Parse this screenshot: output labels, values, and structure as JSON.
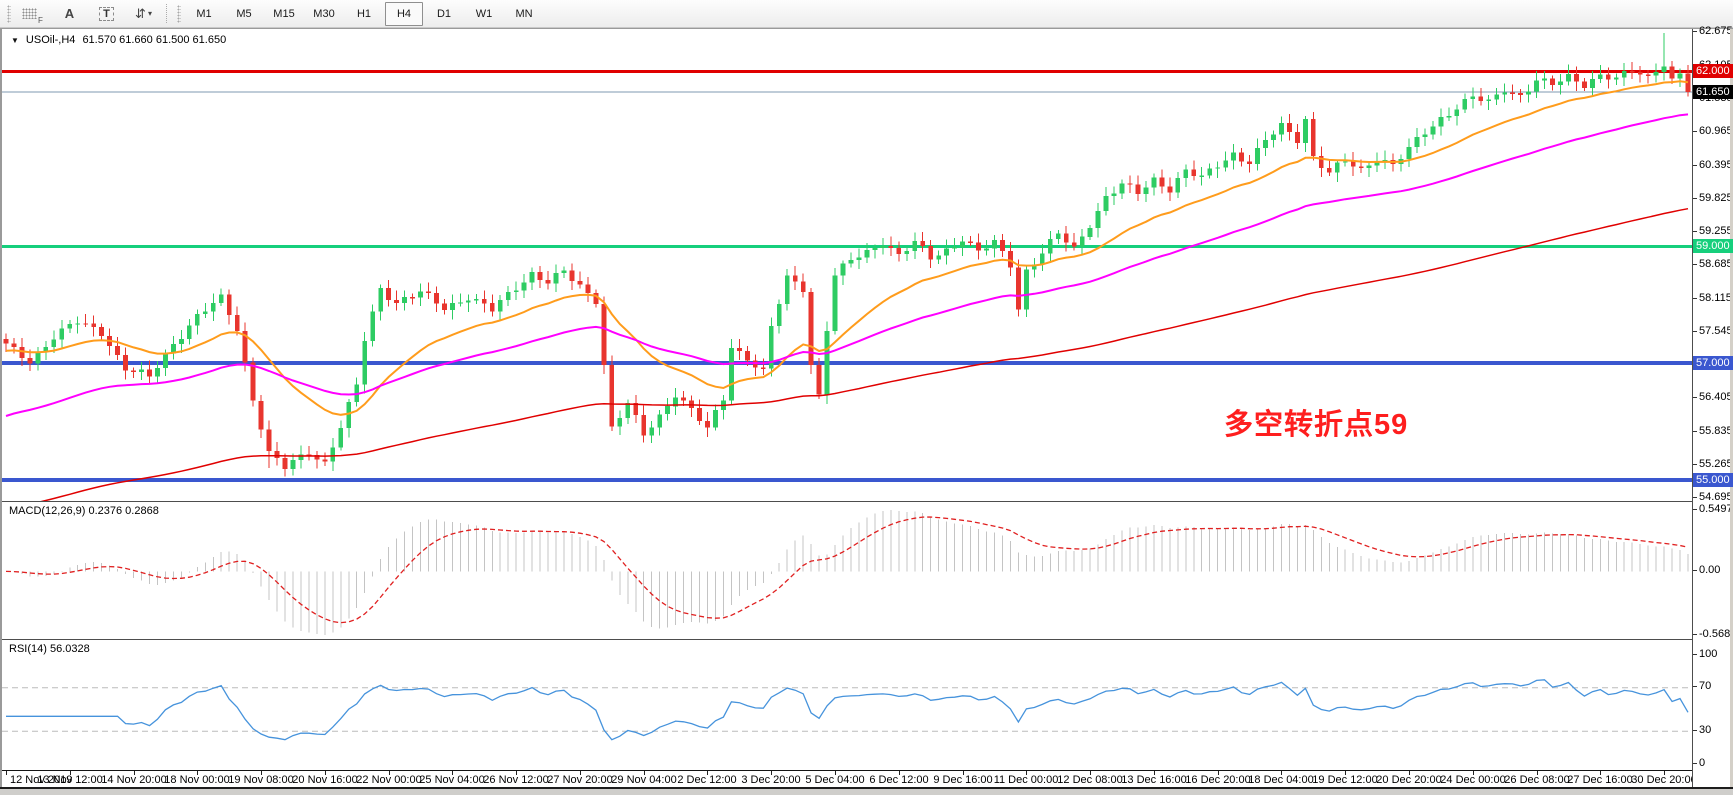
{
  "toolbar": {
    "buttons": [
      {
        "id": "crosshair-grid",
        "label": "F"
      },
      {
        "id": "text-annotate",
        "label": "A"
      },
      {
        "id": "text-box",
        "label": "T"
      },
      {
        "id": "swap-arrows",
        "label": "⇵",
        "caret": "▾"
      }
    ],
    "timeframes": [
      "M1",
      "M5",
      "M15",
      "M30",
      "H1",
      "H4",
      "D1",
      "W1",
      "MN"
    ],
    "active_timeframe": "H4"
  },
  "chart": {
    "title_caret": "▼",
    "title": "USOil-,H4",
    "ohlc": "61.570 61.660 61.500 61.650"
  },
  "chart_data": {
    "type": "candlestick",
    "symbol": "USOil-",
    "timeframe": "H4",
    "bars": 212,
    "up_color": "#2ecc63",
    "down_color": "#e8352e",
    "ylim": [
      54.64,
      62.726
    ],
    "price_ticks": [
      "62.675",
      "62.105",
      "61.535",
      "60.965",
      "60.395",
      "59.825",
      "59.255",
      "58.685",
      "58.115",
      "57.545",
      "56.975",
      "56.405",
      "55.835",
      "55.265",
      "54.695"
    ],
    "levels": [
      {
        "price": 62.0,
        "label": "62.000",
        "color": "#e00000",
        "thickness": 3
      },
      {
        "price": 59.0,
        "label": "59.000",
        "color": "#16cf7c",
        "thickness": 3
      },
      {
        "price": 57.0,
        "label": "57.000",
        "color": "#3a57cf",
        "thickness": 4
      },
      {
        "price": 55.0,
        "label": "55.000",
        "color": "#3a57cf",
        "thickness": 4
      }
    ],
    "bid": {
      "price": 61.65,
      "label": "61.650",
      "line_color": "#7f99b2",
      "label_bg": "#000000"
    },
    "annotation": {
      "text": "多空转折点59",
      "color": "#fe1e1e",
      "x": 1222,
      "y": 372
    },
    "close_waypoints": [
      [
        0,
        57.3
      ],
      [
        3,
        57.05
      ],
      [
        6,
        57.45
      ],
      [
        9,
        57.7
      ],
      [
        12,
        57.55
      ],
      [
        15,
        56.9
      ],
      [
        18,
        56.75
      ],
      [
        21,
        57.35
      ],
      [
        24,
        57.8
      ],
      [
        27,
        58.1
      ],
      [
        29,
        57.6
      ],
      [
        31,
        56.4
      ],
      [
        33,
        55.45
      ],
      [
        35,
        55.2
      ],
      [
        38,
        55.5
      ],
      [
        40,
        55.3
      ],
      [
        42,
        55.9
      ],
      [
        44,
        56.6
      ],
      [
        45,
        57.4
      ],
      [
        47,
        58.3
      ],
      [
        49,
        58.05
      ],
      [
        52,
        58.2
      ],
      [
        55,
        57.95
      ],
      [
        58,
        58.15
      ],
      [
        61,
        57.9
      ],
      [
        64,
        58.3
      ],
      [
        66,
        58.55
      ],
      [
        68,
        58.4
      ],
      [
        70,
        58.55
      ],
      [
        72,
        58.3
      ],
      [
        74,
        58.1
      ],
      [
        75,
        57.0
      ],
      [
        76,
        55.9
      ],
      [
        78,
        56.3
      ],
      [
        80,
        55.75
      ],
      [
        82,
        56.1
      ],
      [
        84,
        56.5
      ],
      [
        86,
        56.2
      ],
      [
        88,
        55.85
      ],
      [
        90,
        56.4
      ],
      [
        91,
        57.3
      ],
      [
        93,
        57.1
      ],
      [
        95,
        56.85
      ],
      [
        96,
        57.6
      ],
      [
        98,
        58.45
      ],
      [
        100,
        58.3
      ],
      [
        101,
        57.0
      ],
      [
        102,
        56.45
      ],
      [
        103,
        57.6
      ],
      [
        104,
        58.5
      ],
      [
        106,
        58.75
      ],
      [
        108,
        58.9
      ],
      [
        110,
        59.1
      ],
      [
        112,
        58.85
      ],
      [
        114,
        59.05
      ],
      [
        116,
        58.8
      ],
      [
        118,
        58.95
      ],
      [
        120,
        59.15
      ],
      [
        122,
        58.9
      ],
      [
        124,
        59.05
      ],
      [
        126,
        58.7
      ],
      [
        127,
        57.95
      ],
      [
        128,
        58.6
      ],
      [
        130,
        58.9
      ],
      [
        132,
        59.2
      ],
      [
        134,
        58.95
      ],
      [
        136,
        59.4
      ],
      [
        138,
        59.85
      ],
      [
        140,
        60.05
      ],
      [
        142,
        59.9
      ],
      [
        144,
        60.15
      ],
      [
        146,
        60.0
      ],
      [
        148,
        60.3
      ],
      [
        150,
        60.15
      ],
      [
        152,
        60.4
      ],
      [
        154,
        60.6
      ],
      [
        156,
        60.45
      ],
      [
        158,
        60.8
      ],
      [
        160,
        61.05
      ],
      [
        162,
        60.85
      ],
      [
        163,
        61.2
      ],
      [
        164,
        60.55
      ],
      [
        166,
        60.25
      ],
      [
        168,
        60.45
      ],
      [
        170,
        60.3
      ],
      [
        172,
        60.55
      ],
      [
        174,
        60.4
      ],
      [
        176,
        60.65
      ],
      [
        178,
        60.95
      ],
      [
        180,
        61.2
      ],
      [
        182,
        61.4
      ],
      [
        184,
        61.55
      ],
      [
        186,
        61.45
      ],
      [
        188,
        61.7
      ],
      [
        190,
        61.6
      ],
      [
        192,
        61.85
      ],
      [
        194,
        61.75
      ],
      [
        196,
        61.9
      ],
      [
        198,
        61.8
      ],
      [
        200,
        61.95
      ],
      [
        202,
        61.85
      ],
      [
        204,
        62.0
      ],
      [
        206,
        61.9
      ],
      [
        207,
        62.05
      ],
      [
        208,
        62.15
      ],
      [
        209,
        61.85
      ],
      [
        210,
        61.95
      ],
      [
        211,
        61.65
      ]
    ],
    "wick_spikes": [
      [
        208,
        0.42,
        0
      ],
      [
        33,
        0,
        0.18
      ]
    ],
    "moving_averages": [
      {
        "name": "fast-ma",
        "color": "#ff9c1c",
        "period": 20,
        "seed": 57.2,
        "width": 2
      },
      {
        "name": "mid-ma",
        "color": "#ff00ff",
        "period": 55,
        "seed": 56.05,
        "width": 2
      },
      {
        "name": "slow-ma",
        "color": "#e00000",
        "period": 160,
        "seed": 54.45,
        "width": 1.5
      }
    ],
    "indicators": {
      "macd": {
        "label": "MACD(12,26,9)",
        "values": "0.2376 0.2868",
        "params": [
          12,
          26,
          9
        ],
        "axis_max": 0.5497,
        "axis_min": -0.5685,
        "axis_ticks": [
          "0.5497",
          "0.00",
          "-0.5685"
        ],
        "histogram_color": "#c4c4c4",
        "signal_color": "#e02020"
      },
      "rsi": {
        "label": "RSI(14)",
        "value": "56.0328",
        "period": 14,
        "guides": [
          70,
          30
        ],
        "axis_ticks": [
          "100",
          "70",
          "30",
          "0"
        ],
        "color": "#4693dc",
        "guide_color": "#bcbcbc"
      }
    },
    "time_labels": [
      "12 Nov 2019",
      "13 Nov 12:00",
      "14 Nov 20:00",
      "18 Nov 00:00",
      "19 Nov 08:00",
      "20 Nov 16:00",
      "22 Nov 00:00",
      "25 Nov 04:00",
      "26 Nov 12:00",
      "27 Nov 20:00",
      "29 Nov 04:00",
      "2 Dec 12:00",
      "3 Dec 20:00",
      "5 Dec 04:00",
      "6 Dec 12:00",
      "9 Dec 16:00",
      "11 Dec 00:00",
      "12 Dec 08:00",
      "13 Dec 16:00",
      "16 Dec 20:00",
      "18 Dec 04:00",
      "19 Dec 12:00",
      "20 Dec 20:00",
      "24 Dec 00:00",
      "26 Dec 08:00",
      "27 Dec 16:00",
      "30 Dec 20:00"
    ]
  }
}
